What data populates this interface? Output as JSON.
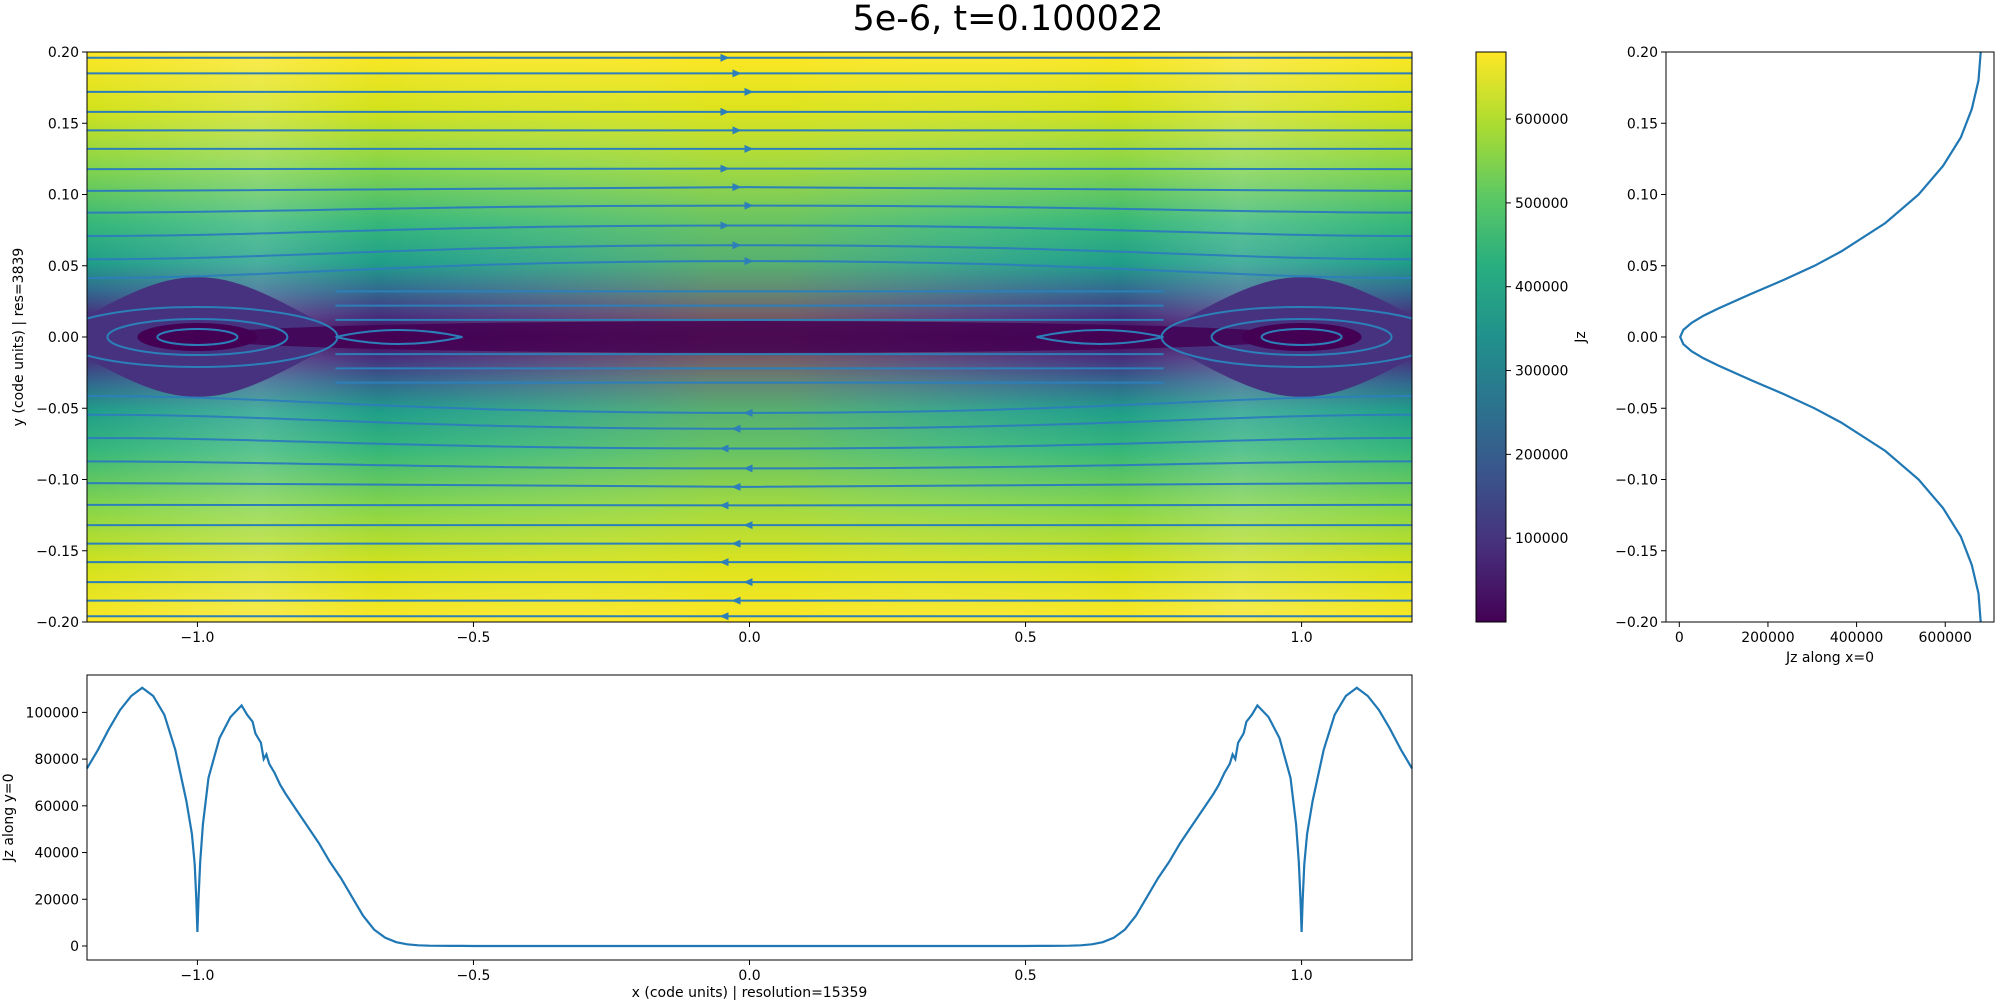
{
  "title": "5e-6, t=0.100022",
  "colors": {
    "line": "#1f77b4",
    "axis": "#000000"
  },
  "chart_data": [
    {
      "type": "heatmap",
      "name": "Jz map with field lines",
      "xlabel": "",
      "ylabel": "y (code units) | res=3839",
      "xlim": [
        -1.2,
        1.2
      ],
      "ylim": [
        -0.2,
        0.2
      ],
      "xticks": [
        -1.0,
        -0.5,
        0.0,
        0.5,
        1.0
      ],
      "xtick_labels": [
        "−1.0",
        "−0.5",
        "0.0",
        "0.5",
        "1.0"
      ],
      "yticks": [
        -0.2,
        -0.15,
        -0.1,
        -0.05,
        0.0,
        0.05,
        0.1,
        0.15,
        0.2
      ],
      "ytick_labels": [
        "−0.20",
        "−0.15",
        "−0.10",
        "−0.05",
        "0.00",
        "0.05",
        "0.10",
        "0.15",
        "0.20"
      ],
      "colormap": "viridis",
      "overlay": "streamlines",
      "islands_x": [
        -1.0,
        1.0
      ],
      "island_halfwidth_y": 0.042
    },
    {
      "type": "colorbar",
      "label": "Jz",
      "range": [
        0,
        680000
      ],
      "ticks": [
        100000,
        200000,
        300000,
        400000,
        500000,
        600000
      ],
      "tick_labels": [
        "100000",
        "200000",
        "300000",
        "400000",
        "500000",
        "600000"
      ]
    },
    {
      "type": "line",
      "name": "Jz vertical profile",
      "xlabel": "Jz along x=0",
      "ylabel": "",
      "xlim": [
        -30000,
        710000
      ],
      "ylim": [
        -0.2,
        0.2
      ],
      "xticks": [
        0,
        200000,
        400000,
        600000
      ],
      "xtick_labels": [
        "0",
        "200000",
        "400000",
        "600000"
      ],
      "yticks": [
        -0.2,
        -0.15,
        -0.1,
        -0.05,
        0.0,
        0.05,
        0.1,
        0.15,
        0.2
      ],
      "ytick_labels": [
        "−0.20",
        "−0.15",
        "−0.10",
        "−0.05",
        "0.00",
        "0.05",
        "0.10",
        "0.15",
        "0.20"
      ],
      "y": [
        -0.2,
        -0.18,
        -0.16,
        -0.14,
        -0.12,
        -0.1,
        -0.08,
        -0.06,
        -0.05,
        -0.04,
        -0.03,
        -0.02,
        -0.015,
        -0.01,
        -0.005,
        0.0,
        0.005,
        0.01,
        0.015,
        0.02,
        0.03,
        0.04,
        0.05,
        0.06,
        0.08,
        0.1,
        0.12,
        0.14,
        0.16,
        0.18,
        0.2
      ],
      "x": [
        680000,
        675000,
        660000,
        635000,
        595000,
        540000,
        465000,
        365000,
        305000,
        235000,
        160000,
        88000,
        55000,
        28000,
        9000,
        2000,
        9000,
        28000,
        55000,
        88000,
        160000,
        235000,
        305000,
        365000,
        465000,
        540000,
        595000,
        635000,
        660000,
        675000,
        680000
      ]
    },
    {
      "type": "line",
      "name": "Jz horizontal profile",
      "xlabel": "x (code units) | resolution=15359",
      "ylabel": "Jz along y=0",
      "xlim": [
        -1.2,
        1.2
      ],
      "ylim": [
        -6000,
        116000
      ],
      "xticks": [
        -1.0,
        -0.5,
        0.0,
        0.5,
        1.0
      ],
      "xtick_labels": [
        "−1.0",
        "−0.5",
        "0.0",
        "0.5",
        "1.0"
      ],
      "yticks": [
        0,
        20000,
        40000,
        60000,
        80000,
        100000
      ],
      "ytick_labels": [
        "0",
        "20000",
        "40000",
        "60000",
        "80000",
        "100000"
      ],
      "x": [
        -1.2,
        -1.18,
        -1.16,
        -1.14,
        -1.12,
        -1.1,
        -1.08,
        -1.06,
        -1.04,
        -1.02,
        -1.01,
        -1.005,
        -1.002,
        -1.0,
        -0.998,
        -0.995,
        -0.99,
        -0.98,
        -0.96,
        -0.94,
        -0.92,
        -0.91,
        -0.9,
        -0.895,
        -0.885,
        -0.88,
        -0.875,
        -0.87,
        -0.86,
        -0.85,
        -0.84,
        -0.82,
        -0.8,
        -0.78,
        -0.76,
        -0.74,
        -0.72,
        -0.7,
        -0.68,
        -0.66,
        -0.64,
        -0.62,
        -0.6,
        -0.58,
        -0.56,
        -0.54,
        -0.52,
        -0.5,
        -0.3,
        0.0,
        0.3,
        0.5,
        0.52,
        0.54,
        0.56,
        0.58,
        0.6,
        0.62,
        0.64,
        0.66,
        0.68,
        0.7,
        0.72,
        0.74,
        0.76,
        0.78,
        0.8,
        0.82,
        0.84,
        0.85,
        0.86,
        0.87,
        0.875,
        0.88,
        0.885,
        0.895,
        0.9,
        0.91,
        0.92,
        0.94,
        0.96,
        0.98,
        0.99,
        0.995,
        0.998,
        1.0,
        1.002,
        1.005,
        1.01,
        1.02,
        1.04,
        1.06,
        1.08,
        1.1,
        1.12,
        1.14,
        1.16,
        1.18,
        1.2
      ],
      "y": [
        76000,
        84000,
        93000,
        101000,
        107000,
        110500,
        107000,
        99000,
        84000,
        62000,
        48000,
        35000,
        20000,
        6000,
        20000,
        36000,
        52000,
        72000,
        89000,
        98000,
        103000,
        99000,
        96000,
        91000,
        87000,
        80000,
        82000,
        78000,
        74000,
        69000,
        65000,
        58000,
        51000,
        44000,
        36000,
        29000,
        21000,
        13000,
        7000,
        3600,
        1600,
        700,
        300,
        120,
        60,
        30,
        15,
        10,
        5,
        3,
        5,
        10,
        15,
        30,
        60,
        120,
        300,
        700,
        1600,
        3600,
        7000,
        13000,
        21000,
        29000,
        36000,
        44000,
        51000,
        58000,
        65000,
        69000,
        74000,
        78000,
        82000,
        80000,
        87000,
        91000,
        96000,
        99000,
        103000,
        98000,
        89000,
        72000,
        52000,
        36000,
        20000,
        6000,
        20000,
        35000,
        48000,
        62000,
        84000,
        99000,
        107000,
        110500,
        107000,
        101000,
        93000,
        84000,
        76000
      ]
    }
  ]
}
